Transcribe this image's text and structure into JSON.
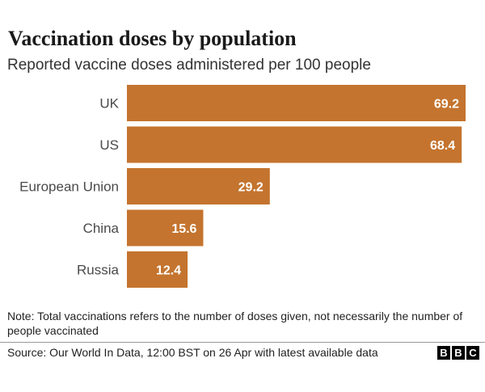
{
  "chart_data": {
    "type": "bar",
    "orientation": "horizontal",
    "title": "Vaccination doses by population",
    "subtitle": "Reported vaccine doses administered per 100 people",
    "categories": [
      "UK",
      "US",
      "European Union",
      "China",
      "Russia"
    ],
    "values": [
      69.2,
      68.4,
      29.2,
      15.6,
      12.4
    ],
    "value_labels": [
      "69.2",
      "68.4",
      "29.2",
      "15.6",
      "12.4"
    ],
    "xlim": [
      0,
      69.2
    ],
    "grid": false,
    "bar_color": "#c4742e"
  },
  "note": "Note: Total vaccinations refers to the number of doses given, not necessarily the number of people vaccinated",
  "source": "Source: Our World In Data, 12:00 BST on 26 Apr with latest available data",
  "logo": [
    "B",
    "B",
    "C"
  ]
}
